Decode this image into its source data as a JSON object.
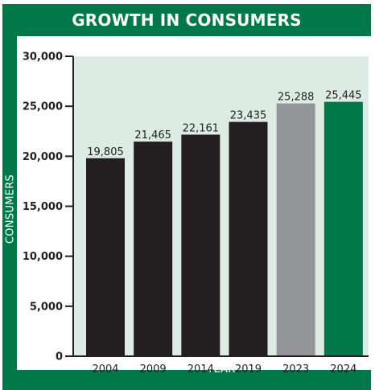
{
  "chart_data": {
    "type": "bar",
    "title": "GROWTH IN CONSUMERS",
    "xlabel": "YEAR",
    "ylabel": "CONSUMERS",
    "categories": [
      "2004",
      "2009",
      "2014",
      "2019",
      "2023",
      "2024"
    ],
    "values": [
      19805,
      21465,
      22161,
      23435,
      25288,
      25445
    ],
    "value_labels": [
      "19,805",
      "21,465",
      "22,161",
      "23,435",
      "25,288",
      "25,445"
    ],
    "bar_colors": [
      "#231f20",
      "#231f20",
      "#231f20",
      "#231f20",
      "#939598",
      "#00784a"
    ],
    "ylim": [
      0,
      30000
    ],
    "yticks": [
      0,
      5000,
      10000,
      15000,
      20000,
      25000,
      30000
    ],
    "ytick_labels": [
      "0",
      "5,000",
      "10,000",
      "15,000",
      "20,000",
      "25,000",
      "30,000"
    ],
    "plot_background": "#dcebe3",
    "frame_color": "#00784a",
    "grid": false,
    "legend": "none"
  }
}
